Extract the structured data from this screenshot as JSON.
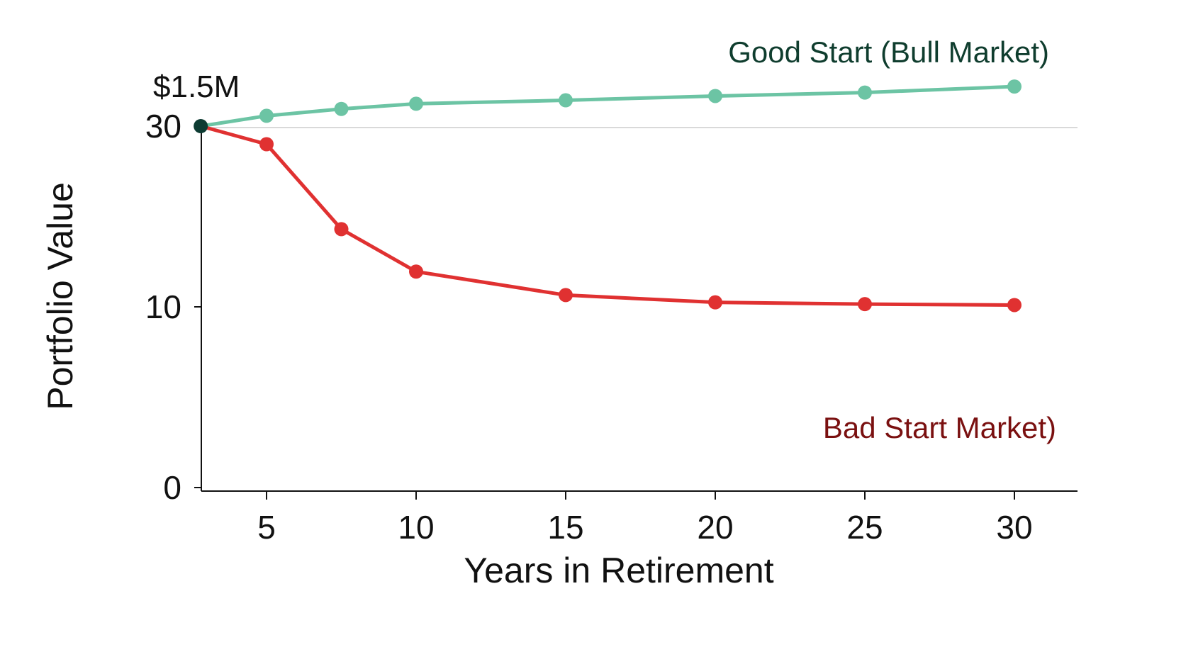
{
  "chart_data": {
    "type": "line",
    "xlabel": "Years in Retirement",
    "ylabel": "Portfolio Value",
    "start_label": "$1.5M",
    "x_ticks": [
      5,
      10,
      15,
      20,
      25,
      30
    ],
    "y_ticks": [
      0,
      10,
      30
    ],
    "x": [
      2.8,
      5,
      7.5,
      10,
      15,
      20,
      25,
      30
    ],
    "series": [
      {
        "name": "Good Start (Bull Market)",
        "color": "#6cc4a4",
        "label_color": "#0f3d2e",
        "values": [
          30,
          30.6,
          31.0,
          31.3,
          31.5,
          31.75,
          31.95,
          32.3
        ]
      },
      {
        "name": "Bad Start Market)",
        "color": "#e03131",
        "label_color": "#7a1010",
        "values": [
          30,
          28.0,
          18.6,
          13.9,
          11.3,
          10.5,
          10.3,
          10.2
        ]
      }
    ],
    "start_point_color": "#0d3b32",
    "grid": "horizontal line at 30 only",
    "y_scale": "nonlinear (0, 10, 30 ticks)"
  }
}
